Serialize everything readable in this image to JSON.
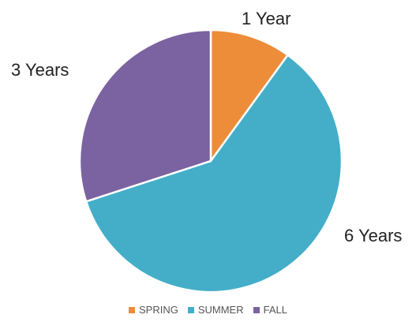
{
  "chart_data": {
    "type": "pie",
    "categories": [
      "SPRING",
      "SUMMER",
      "FALL"
    ],
    "values": [
      10,
      60,
      30
    ],
    "slice_labels": [
      "1 Year",
      "6 Years",
      "3 Years"
    ],
    "colors": [
      "#ED8C39",
      "#44AEC8",
      "#7B62A0"
    ],
    "legend": "bottom",
    "start_angle_deg": 0,
    "direction": "clockwise"
  }
}
